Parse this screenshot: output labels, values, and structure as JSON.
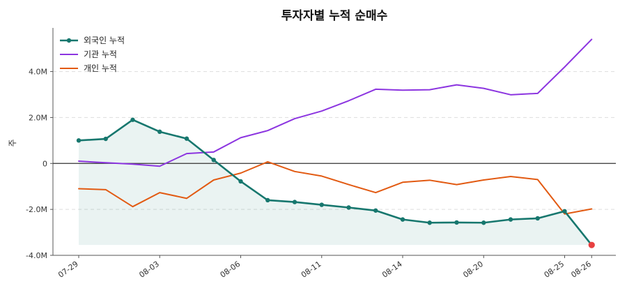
{
  "chart_data": {
    "type": "line",
    "title": "투자자별 누적 순매수",
    "xlabel": "",
    "ylabel": "주",
    "ylim": [
      -4.0,
      5.9
    ],
    "y_ticks": [
      -4.0,
      -2.0,
      0,
      2.0,
      4.0
    ],
    "y_tick_labels": [
      "-4.0M",
      "-2.0M",
      "0",
      "2.0M",
      "4.0M"
    ],
    "y_unit": "M",
    "x_ticks": [
      "07-29",
      "08-03",
      "08-06",
      "08-11",
      "08-14",
      "08-20",
      "08-25",
      "08-26"
    ],
    "x_tick_index": [
      0,
      3,
      6,
      9,
      12,
      15,
      18,
      19
    ],
    "grid": "horizontal dashed",
    "legend_position": "top-left",
    "zero_line": true,
    "series": [
      {
        "name": "외국인 누적",
        "color": "#17776e",
        "markers": true,
        "fill": true,
        "last_point_color": "#e84040",
        "values": [
          1.0,
          1.07,
          1.9,
          1.38,
          1.08,
          0.15,
          -0.78,
          -1.6,
          -1.68,
          -1.8,
          -1.92,
          -2.05,
          -2.44,
          -2.58,
          -2.57,
          -2.58,
          -2.44,
          -2.39,
          -2.08,
          -3.55
        ]
      },
      {
        "name": "기관 누적",
        "color": "#8c35e0",
        "markers": false,
        "values": [
          0.1,
          0.03,
          -0.03,
          -0.12,
          0.43,
          0.5,
          1.12,
          1.43,
          1.95,
          2.28,
          2.73,
          3.23,
          3.19,
          3.21,
          3.42,
          3.27,
          2.99,
          3.05,
          4.2,
          5.4
        ]
      },
      {
        "name": "개인 누적",
        "color": "#e25a12",
        "markers": false,
        "values": [
          -1.1,
          -1.14,
          -1.88,
          -1.27,
          -1.52,
          -0.72,
          -0.42,
          0.07,
          -0.35,
          -0.55,
          -0.92,
          -1.27,
          -0.82,
          -0.73,
          -0.92,
          -0.72,
          -0.57,
          -0.7,
          -2.2,
          -1.98
        ]
      }
    ]
  }
}
